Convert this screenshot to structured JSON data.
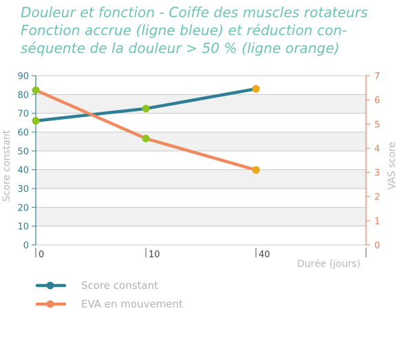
{
  "title": {
    "lines": [
      "Douleur et fonction - Coiffe des muscles rotateurs",
      "Fonction accrue (ligne bleue) et réduction con-",
      "séquente de la douleur > 50 % (ligne orange)"
    ]
  },
  "chart_data": {
    "type": "line",
    "categories": [
      "0",
      "10",
      "40"
    ],
    "xlabel": "Durée (jours)",
    "y_left": {
      "label": "Score constant",
      "ylim": [
        0,
        90
      ],
      "ticks": [
        "0",
        "10",
        "20",
        "30",
        "40",
        "50",
        "60",
        "70",
        "80",
        "90"
      ]
    },
    "y_right": {
      "label": "VAS score",
      "ylim": [
        0,
        7
      ],
      "ticks": [
        "0",
        "1",
        "2",
        "3",
        "4",
        "5",
        "6",
        "7"
      ]
    },
    "grid": true,
    "legend_position": "bottom-left",
    "series": [
      {
        "name": "Score constant",
        "axis": "left",
        "values": [
          66,
          72.5,
          83
        ],
        "color": "#2e7f95",
        "marker_colors": [
          "#8fc31f",
          "#8fc31f",
          "#e8a817"
        ]
      },
      {
        "name": "EVA en mouvement",
        "axis": "right",
        "values": [
          6.4,
          4.4,
          3.1
        ],
        "color": "#ef8a5f",
        "marker_colors": [
          "#8fc31f",
          "#8fc31f",
          "#e8a817"
        ]
      }
    ]
  }
}
